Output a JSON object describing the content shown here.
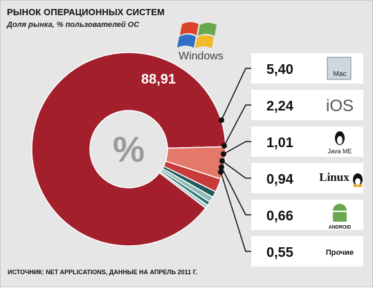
{
  "title": "РЫНОК ОПЕРАЦИОННЫХ СИСТЕМ",
  "subtitle": "Доля рынка, % пользователей ОС",
  "source": "ИСТОЧНИК: NET APPLICATIONS, ДАННЫЕ НА АПРЕЛЬ 2011 Г.",
  "center_symbol": "%",
  "colors": {
    "windows": "#a31f2c",
    "mac": "#e47969",
    "ios": "#c93a3a",
    "java_me": "#1f5b5b",
    "linux": "#8fbab5",
    "android": "#2f7575",
    "other": "#a8c9c4"
  },
  "logos": {
    "windows": "Windows",
    "mac": "Mac",
    "ios": "iOS",
    "java_me": "Java ME",
    "linux": "Linux",
    "android": "ANDROID",
    "other": "Прочие"
  },
  "chart_data": {
    "type": "pie",
    "variant": "donut",
    "title": "РЫНОК ОПЕРАЦИОННЫХ СИСТЕМ",
    "subtitle": "Доля рынка, % пользователей ОС",
    "slices": [
      {
        "name": "Windows",
        "value": 88.91,
        "label": "88,91",
        "color": "#a31f2c"
      },
      {
        "name": "Mac",
        "value": 5.4,
        "label": "5,40",
        "color": "#e47969"
      },
      {
        "name": "iOS",
        "value": 2.24,
        "label": "2,24",
        "color": "#c93a3a"
      },
      {
        "name": "Java ME",
        "value": 1.01,
        "label": "1,01",
        "color": "#1f5b5b"
      },
      {
        "name": "Linux",
        "value": 0.94,
        "label": "0,94",
        "color": "#8fbab5"
      },
      {
        "name": "Android",
        "value": 0.66,
        "label": "0,66",
        "color": "#2f7575"
      },
      {
        "name": "Прочие",
        "value": 0.55,
        "label": "0,55",
        "color": "#a8c9c4"
      }
    ]
  }
}
